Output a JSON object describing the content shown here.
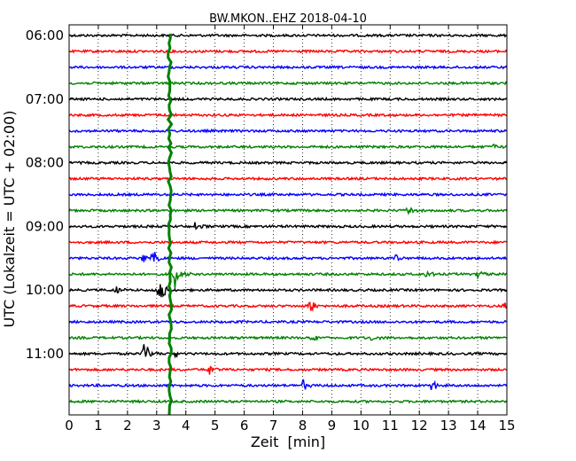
{
  "chart_data": {
    "type": "line",
    "title": "BW.MKON..EHZ 2018-04-10",
    "xlabel": "Zeit  [min]",
    "ylabel": "UTC (Lokalzeit = UTC + 02:00)",
    "xlim": [
      0,
      15
    ],
    "x_ticks": [
      "0",
      "1",
      "2",
      "3",
      "4",
      "5",
      "6",
      "7",
      "8",
      "9",
      "10",
      "11",
      "12",
      "13",
      "14",
      "15"
    ],
    "y_ticks": [
      {
        "label": "06:00",
        "trace": 0
      },
      {
        "label": "07:00",
        "trace": 4
      },
      {
        "label": "08:00",
        "trace": 8
      },
      {
        "label": "09:00",
        "trace": 12
      },
      {
        "label": "10:00",
        "trace": 16
      },
      {
        "label": "11:00",
        "trace": 20
      }
    ],
    "trace_minutes": 15,
    "grid": "vertical dotted",
    "colors": [
      "#000000",
      "#ff0000",
      "#0000ff",
      "#008000"
    ],
    "traces": [
      {
        "start": "06:00",
        "events": []
      },
      {
        "start": "06:15",
        "events": []
      },
      {
        "start": "06:30",
        "events": []
      },
      {
        "start": "06:45",
        "events": []
      },
      {
        "start": "07:00",
        "events": []
      },
      {
        "start": "07:15",
        "events": []
      },
      {
        "start": "07:30",
        "events": []
      },
      {
        "start": "07:45",
        "events": [
          {
            "t": 14.5,
            "amp": 0.4
          }
        ]
      },
      {
        "start": "08:00",
        "events": []
      },
      {
        "start": "08:15",
        "events": []
      },
      {
        "start": "08:30",
        "events": []
      },
      {
        "start": "08:45",
        "events": [
          {
            "t": 11.6,
            "amp": 0.5
          }
        ]
      },
      {
        "start": "09:00",
        "events": [
          {
            "t": 4.3,
            "amp": 0.4
          }
        ]
      },
      {
        "start": "09:15",
        "events": []
      },
      {
        "start": "09:30",
        "events": [
          {
            "t": 2.5,
            "amp": 0.6
          },
          {
            "t": 2.85,
            "amp": 1.1
          },
          {
            "t": 11.1,
            "amp": 0.5
          }
        ]
      },
      {
        "start": "09:45",
        "events": [
          {
            "t": 3.6,
            "amp": 1.6
          },
          {
            "t": 12.2,
            "amp": 0.4
          },
          {
            "t": 14.0,
            "amp": 0.4
          }
        ]
      },
      {
        "start": "10:00",
        "events": [
          {
            "t": 1.6,
            "amp": 0.5
          },
          {
            "t": 3.05,
            "amp": 2.0
          }
        ]
      },
      {
        "start": "10:15",
        "events": [
          {
            "t": 8.2,
            "amp": 0.8
          },
          {
            "t": 14.9,
            "amp": 0.5
          }
        ]
      },
      {
        "start": "10:30",
        "events": []
      },
      {
        "start": "10:45",
        "events": [
          {
            "t": 8.3,
            "amp": 0.4
          },
          {
            "t": 10.3,
            "amp": 0.4
          }
        ]
      },
      {
        "start": "11:00",
        "events": [
          {
            "t": 2.55,
            "amp": 1.5
          },
          {
            "t": 3.6,
            "amp": 0.5
          }
        ]
      },
      {
        "start": "11:15",
        "events": [
          {
            "t": 4.8,
            "amp": 0.6
          }
        ]
      },
      {
        "start": "11:30",
        "events": [
          {
            "t": 8.0,
            "amp": 0.5
          },
          {
            "t": 12.4,
            "amp": 0.6
          }
        ]
      },
      {
        "start": "11:45",
        "events": []
      }
    ],
    "spike": {
      "t": 3.45,
      "from_trace": 0,
      "to_trace": 23,
      "color": "#008000"
    }
  }
}
